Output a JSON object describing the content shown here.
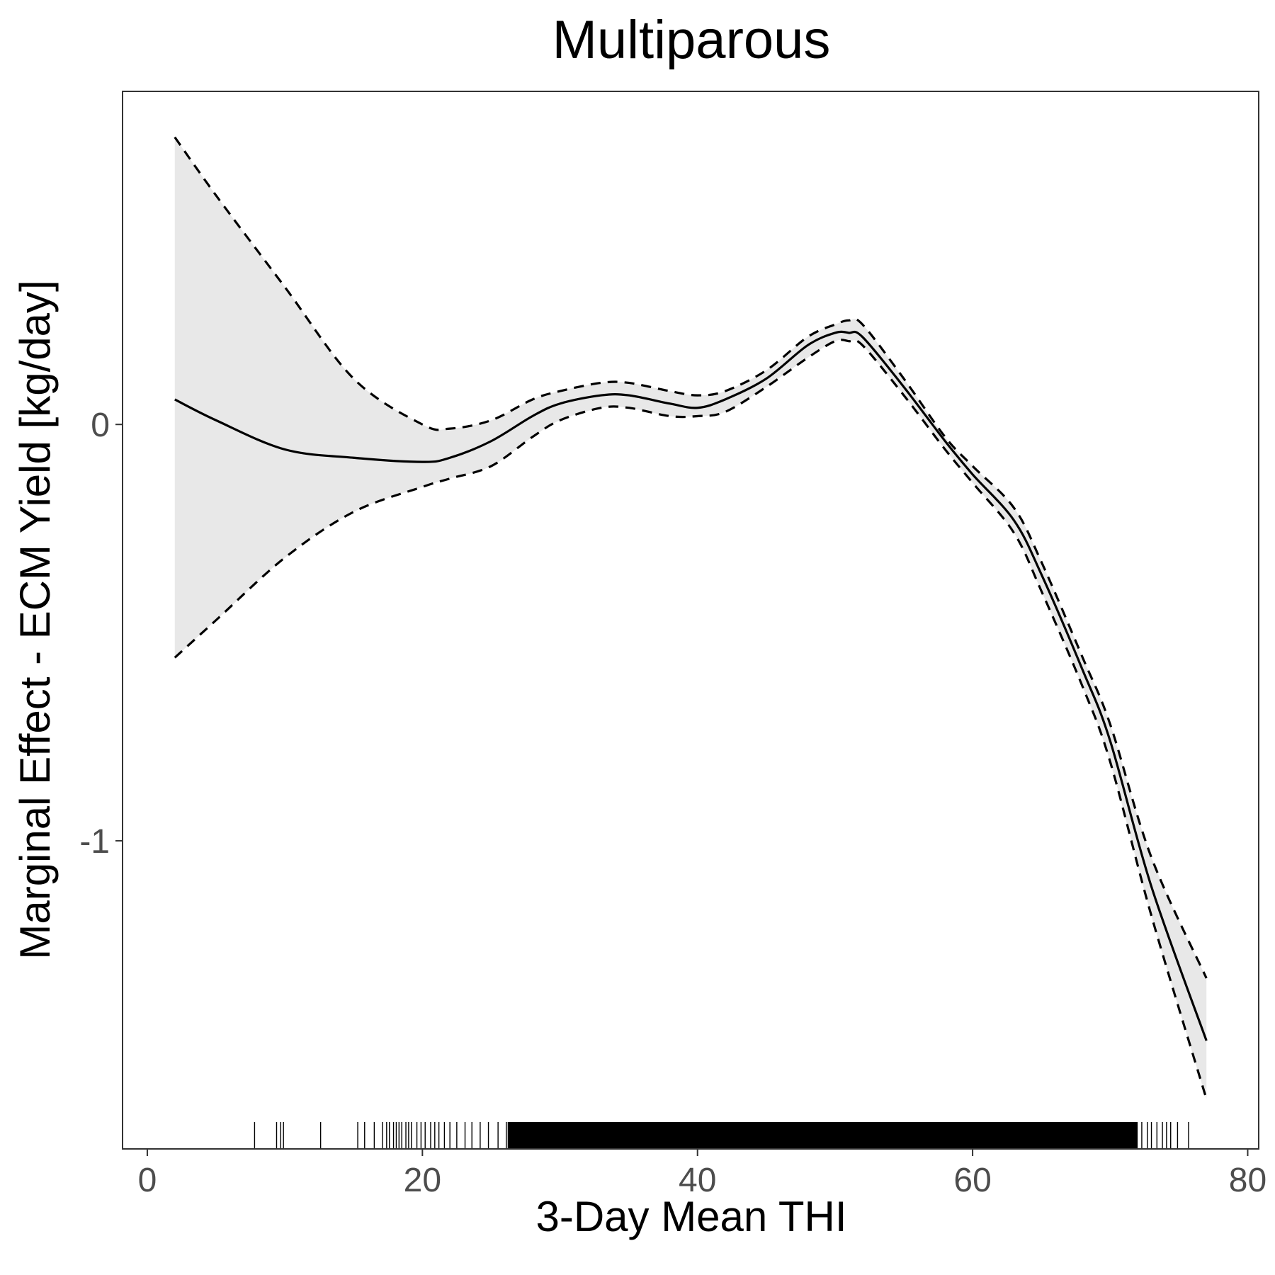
{
  "chart_data": {
    "type": "line",
    "title": "Multiparous",
    "xlabel": "3-Day Mean THI",
    "ylabel": "Marginal Effect - ECM Yield [kg/day]",
    "xlim": [
      -1.8,
      80.8
    ],
    "ylim": [
      -1.74,
      0.8
    ],
    "xticks": [
      0,
      20,
      40,
      60,
      80
    ],
    "xtick_labels": [
      "0",
      "20",
      "40",
      "60",
      "80"
    ],
    "yticks": [
      0,
      -1
    ],
    "ytick_labels": [
      "0",
      "-1"
    ],
    "grid": false,
    "series": [
      {
        "role": "estimate",
        "style": "solid",
        "x": [
          2,
          5,
          10,
          15,
          20,
          22,
          25,
          28,
          30,
          33,
          35,
          38,
          40,
          42,
          45,
          48,
          50,
          51,
          52,
          55,
          58,
          60,
          63,
          65,
          68,
          70,
          73,
          77
        ],
        "y": [
          0.06,
          0.01,
          -0.06,
          -0.08,
          -0.09,
          -0.08,
          -0.04,
          0.02,
          0.05,
          0.07,
          0.07,
          0.05,
          0.04,
          0.06,
          0.11,
          0.19,
          0.22,
          0.22,
          0.21,
          0.09,
          -0.04,
          -0.12,
          -0.23,
          -0.36,
          -0.59,
          -0.76,
          -1.11,
          -1.48
        ]
      },
      {
        "role": "upper confidence bound",
        "style": "dashed",
        "x": [
          2,
          5,
          10,
          15,
          20,
          22,
          25,
          28,
          30,
          33,
          35,
          38,
          40,
          42,
          45,
          48,
          50,
          51,
          52,
          55,
          58,
          60,
          63,
          65,
          68,
          70,
          73,
          77
        ],
        "y": [
          0.69,
          0.55,
          0.33,
          0.11,
          0.0,
          -0.01,
          0.01,
          0.06,
          0.08,
          0.1,
          0.1,
          0.08,
          0.07,
          0.08,
          0.13,
          0.21,
          0.24,
          0.25,
          0.24,
          0.11,
          -0.03,
          -0.1,
          -0.2,
          -0.33,
          -0.56,
          -0.72,
          -1.04,
          -1.33
        ]
      },
      {
        "role": "lower confidence bound",
        "style": "dashed",
        "x": [
          2,
          5,
          10,
          15,
          20,
          22,
          25,
          28,
          30,
          33,
          35,
          38,
          40,
          42,
          45,
          48,
          50,
          51,
          52,
          55,
          58,
          60,
          63,
          65,
          68,
          70,
          73,
          77
        ],
        "y": [
          -0.56,
          -0.47,
          -0.32,
          -0.21,
          -0.15,
          -0.13,
          -0.1,
          -0.03,
          0.01,
          0.04,
          0.04,
          0.02,
          0.02,
          0.03,
          0.09,
          0.16,
          0.2,
          0.2,
          0.19,
          0.07,
          -0.06,
          -0.14,
          -0.26,
          -0.4,
          -0.63,
          -0.81,
          -1.18,
          -1.62
        ]
      }
    ],
    "rug": {
      "x_min": 7.8,
      "x_max": 75.7,
      "sparse_left": [
        7.8,
        9.4,
        9.7,
        9.9,
        12.6,
        15.3,
        15.8,
        16.5,
        17.1,
        17.4,
        17.6,
        17.9,
        18.1,
        18.3,
        18.5,
        18.8,
        19.0,
        19.2,
        19.6,
        19.9,
        20.2,
        20.6,
        20.9,
        21.2,
        21.6,
        22.0,
        22.5,
        23.1,
        23.6,
        24.2,
        24.8,
        25.5,
        26.1
      ],
      "dense_start": 26.2,
      "dense_end": 72.0,
      "sparse_right": [
        72.3,
        72.7,
        73.0,
        73.4,
        73.8,
        74.1,
        74.4,
        74.9,
        75.7
      ]
    },
    "colors": {
      "line": "#000000",
      "ribbon": "#e8e8e8",
      "panel_border": "#333333",
      "tick_label": "#4d4d4d",
      "background": "#ffffff"
    }
  }
}
